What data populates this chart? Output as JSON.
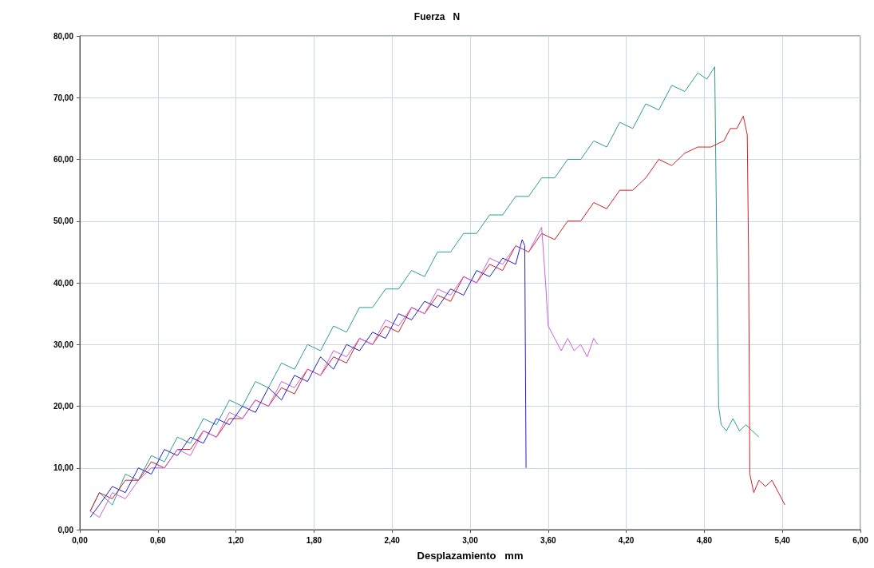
{
  "chart_data": {
    "type": "line",
    "title": "Fuerza   N",
    "xlabel": "Desplazamiento   mm",
    "xlim": [
      0,
      6
    ],
    "ylim": [
      0,
      80
    ],
    "xticks": [
      {
        "value": 0,
        "label": "0,00"
      },
      {
        "value": 0.6,
        "label": "0,60"
      },
      {
        "value": 1.2,
        "label": "1,20"
      },
      {
        "value": 1.8,
        "label": "1,80"
      },
      {
        "value": 2.4,
        "label": "2,40"
      },
      {
        "value": 3,
        "label": "3,00"
      },
      {
        "value": 3.6,
        "label": "3,60"
      },
      {
        "value": 4.2,
        "label": "4,20"
      },
      {
        "value": 4.8,
        "label": "4,80"
      },
      {
        "value": 5.4,
        "label": "5,40"
      },
      {
        "value": 6,
        "label": "6,00"
      }
    ],
    "yticks": [
      {
        "value": 0,
        "label": "0,00"
      },
      {
        "value": 10,
        "label": "10,00"
      },
      {
        "value": 20,
        "label": "20,00"
      },
      {
        "value": 30,
        "label": "30,00"
      },
      {
        "value": 40,
        "label": "40,00"
      },
      {
        "value": 50,
        "label": "50,00"
      },
      {
        "value": 60,
        "label": "60,00"
      },
      {
        "value": 70,
        "label": "70,00"
      },
      {
        "value": 80,
        "label": "80,00"
      }
    ],
    "grid": true,
    "marker": "none",
    "line_style": "solid",
    "series": [
      {
        "color": "#2e9c94",
        "x": [
          0.08,
          0.15,
          0.25,
          0.35,
          0.45,
          0.55,
          0.65,
          0.75,
          0.85,
          0.95,
          1.05,
          1.15,
          1.25,
          1.35,
          1.45,
          1.55,
          1.65,
          1.75,
          1.85,
          1.95,
          2.05,
          2.15,
          2.25,
          2.35,
          2.45,
          2.55,
          2.65,
          2.75,
          2.85,
          2.95,
          3.05,
          3.15,
          3.25,
          3.35,
          3.45,
          3.55,
          3.65,
          3.75,
          3.85,
          3.95,
          4.05,
          4.15,
          4.25,
          4.35,
          4.45,
          4.55,
          4.65,
          4.75,
          4.82,
          4.88,
          4.9,
          4.91,
          4.93,
          4.97,
          5.02,
          5.07,
          5.12,
          5.17,
          5.22
        ],
        "values": [
          3,
          6,
          4,
          9,
          8,
          12,
          11,
          15,
          14,
          18,
          17,
          21,
          20,
          24,
          23,
          27,
          26,
          30,
          29,
          33,
          32,
          36,
          36,
          39,
          39,
          42,
          41,
          45,
          45,
          48,
          48,
          51,
          51,
          54,
          54,
          57,
          57,
          60,
          60,
          63,
          62,
          66,
          65,
          69,
          68,
          72,
          71,
          74,
          73,
          75,
          38,
          20,
          17,
          16,
          18,
          16,
          17,
          16,
          15
        ]
      },
      {
        "color": "#d42020",
        "x": [
          0.08,
          0.15,
          0.25,
          0.35,
          0.45,
          0.55,
          0.65,
          0.75,
          0.85,
          0.95,
          1.05,
          1.15,
          1.25,
          1.35,
          1.45,
          1.55,
          1.65,
          1.75,
          1.85,
          1.95,
          2.05,
          2.15,
          2.25,
          2.35,
          2.45,
          2.55,
          2.65,
          2.75,
          2.85,
          2.95,
          3.05,
          3.15,
          3.25,
          3.35,
          3.45,
          3.55,
          3.65,
          3.75,
          3.85,
          3.95,
          4.05,
          4.15,
          4.25,
          4.35,
          4.45,
          4.55,
          4.65,
          4.75,
          4.85,
          4.95,
          5,
          5.05,
          5.1,
          5.13,
          5.14,
          5.15,
          5.18,
          5.22,
          5.27,
          5.32,
          5.37,
          5.42
        ],
        "values": [
          3,
          6,
          5,
          8,
          8,
          11,
          10,
          13,
          13,
          16,
          15,
          18,
          18,
          21,
          20,
          23,
          22,
          26,
          25,
          28,
          27,
          31,
          30,
          33,
          32,
          36,
          35,
          38,
          37,
          41,
          40,
          43,
          42,
          46,
          45,
          48,
          47,
          50,
          50,
          53,
          52,
          55,
          55,
          57,
          60,
          59,
          61,
          62,
          62,
          63,
          65,
          65,
          67,
          64,
          45,
          9,
          6,
          8,
          7,
          8,
          6,
          4
        ]
      },
      {
        "color": "#d060e0",
        "x": [
          0.08,
          0.15,
          0.25,
          0.35,
          0.45,
          0.55,
          0.65,
          0.75,
          0.85,
          0.95,
          1.05,
          1.15,
          1.25,
          1.35,
          1.45,
          1.55,
          1.65,
          1.75,
          1.85,
          1.95,
          2.05,
          2.15,
          2.25,
          2.35,
          2.45,
          2.55,
          2.65,
          2.75,
          2.85,
          2.95,
          3.05,
          3.15,
          3.25,
          3.35,
          3.45,
          3.55,
          3.58,
          3.6,
          3.65,
          3.7,
          3.75,
          3.8,
          3.85,
          3.9,
          3.95,
          3.98
        ],
        "values": [
          3,
          2,
          6,
          5,
          8,
          10,
          10,
          13,
          12,
          16,
          15,
          19,
          18,
          21,
          20,
          24,
          23,
          26,
          25,
          29,
          28,
          31,
          30,
          34,
          33,
          36,
          35,
          39,
          38,
          41,
          40,
          44,
          43,
          46,
          45,
          49,
          40,
          33,
          31,
          29,
          31,
          29,
          30,
          28,
          31,
          30
        ]
      },
      {
        "color": "#2020d0",
        "x": [
          0.08,
          0.15,
          0.25,
          0.35,
          0.45,
          0.55,
          0.65,
          0.75,
          0.85,
          0.95,
          1.05,
          1.15,
          1.25,
          1.35,
          1.45,
          1.55,
          1.65,
          1.75,
          1.85,
          1.95,
          2.05,
          2.15,
          2.25,
          2.35,
          2.45,
          2.55,
          2.65,
          2.75,
          2.85,
          2.95,
          3.05,
          3.15,
          3.25,
          3.35,
          3.4,
          3.42,
          3.43
        ],
        "values": [
          2,
          4,
          7,
          6,
          10,
          9,
          13,
          12,
          15,
          14,
          18,
          17,
          20,
          19,
          23,
          21,
          25,
          24,
          28,
          26,
          30,
          29,
          32,
          31,
          35,
          34,
          37,
          36,
          39,
          38,
          42,
          41,
          44,
          43,
          47,
          46,
          10
        ]
      }
    ]
  }
}
